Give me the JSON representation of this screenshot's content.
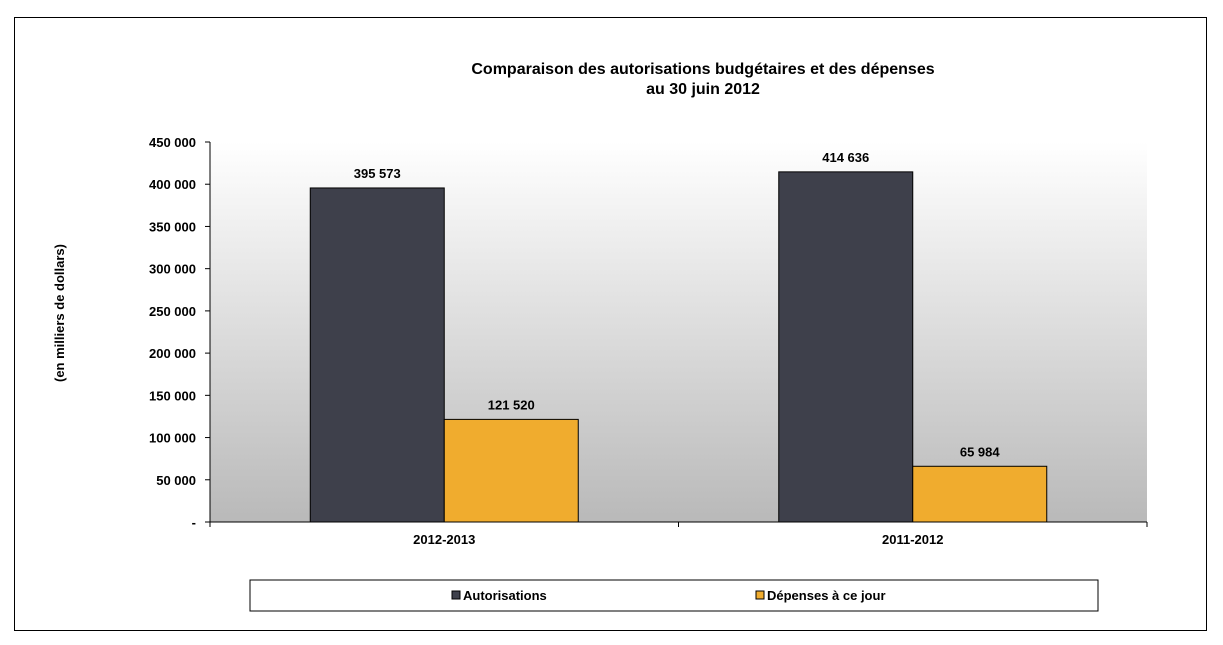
{
  "chart_data": {
    "type": "bar",
    "title": "Comparaison des autorisations budgétaires et des dépenses",
    "subtitle": "au 30 juin 2012",
    "xlabel": "",
    "ylabel": "(en milliers de dollars)",
    "ylim": [
      0,
      450000
    ],
    "ytick_values": [
      0,
      50000,
      100000,
      150000,
      200000,
      250000,
      300000,
      350000,
      400000,
      450000
    ],
    "ytick_labels": [
      "-",
      "50 000",
      "100 000",
      "150 000",
      "200 000",
      "250 000",
      "300 000",
      "350 000",
      "400 000",
      "450 000"
    ],
    "categories": [
      "2012-2013",
      "2011-2012"
    ],
    "series": [
      {
        "name": "Autorisations",
        "values": [
          395573,
          414636
        ],
        "data_labels": [
          "395 573",
          "414 636"
        ],
        "color": "#3e404b"
      },
      {
        "name": "Dépenses à ce jour",
        "values": [
          121520,
          65984
        ],
        "data_labels": [
          "121 520",
          "65 984"
        ],
        "color": "#f0ac2e"
      }
    ],
    "grid": false,
    "legend_position": "bottom",
    "plot_background": "gradient white-to-gray"
  }
}
